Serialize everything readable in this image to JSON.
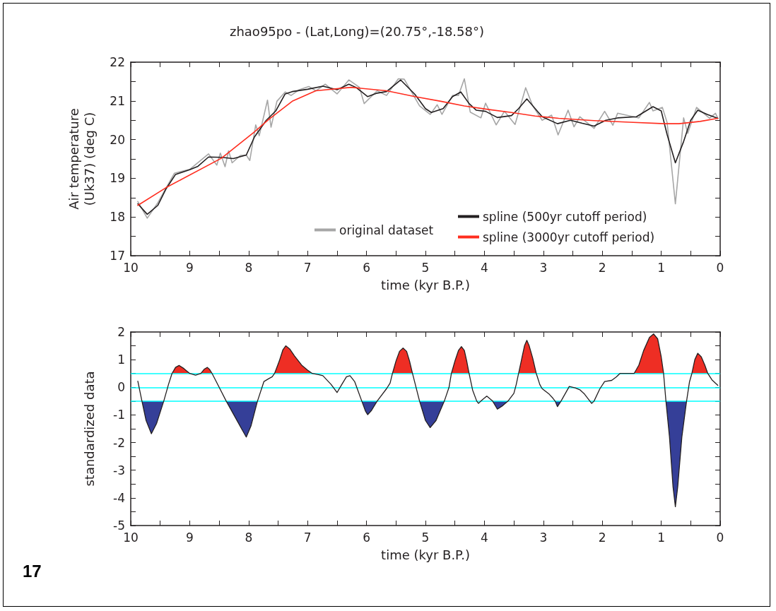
{
  "chart_data": [
    {
      "type": "line",
      "title": "zhao95po - (Lat,Long)=(20.75°,-18.58°)",
      "xlabel": "time (kyr B.P.)",
      "ylabel": "Air temperature\n(Uk37) (deg C)",
      "xlim": [
        10,
        0
      ],
      "ylim": [
        17,
        22
      ],
      "xticks": [
        10,
        {
          "value": 9.5,
          "label": null
        },
        9,
        {
          "value": 8.5,
          "label": null
        },
        8,
        {
          "value": 7.5,
          "label": null
        },
        7,
        {
          "value": 6.5,
          "label": null
        },
        6,
        {
          "value": 5.5,
          "label": null
        },
        5,
        {
          "value": 4.5,
          "label": null
        },
        4,
        {
          "value": 3.5,
          "label": null
        },
        3,
        {
          "value": 2.5,
          "label": null
        },
        2,
        {
          "value": 1.5,
          "label": null
        },
        1,
        {
          "value": 0.5,
          "label": null
        },
        0
      ],
      "yticks": [
        17,
        {
          "value": 17.5,
          "label": null
        },
        18,
        {
          "value": 18.5,
          "label": null
        },
        19,
        {
          "value": 19.5,
          "label": null
        },
        20,
        {
          "value": 20.5,
          "label": null
        },
        21,
        {
          "value": 21.5,
          "label": null
        },
        22
      ],
      "grid": false,
      "legend": "bottom right",
      "marker": "none",
      "line_style": "solid",
      "series": [
        {
          "name": "original dataset",
          "color": "#a6a6a6",
          "x": [
            9.88,
            9.72,
            9.54,
            9.26,
            9.0,
            8.68,
            8.54,
            8.48,
            8.4,
            8.34,
            8.28,
            8.14,
            8.04,
            7.98,
            7.88,
            7.82,
            7.68,
            7.62,
            7.52,
            7.38,
            7.28,
            7.14,
            6.98,
            6.86,
            6.7,
            6.5,
            6.3,
            6.12,
            6.04,
            5.82,
            5.66,
            5.46,
            5.36,
            5.1,
            4.92,
            4.8,
            4.72,
            4.54,
            4.44,
            4.34,
            4.24,
            4.06,
            3.98,
            3.8,
            3.66,
            3.48,
            3.3,
            3.18,
            3.02,
            2.86,
            2.75,
            2.58,
            2.48,
            2.38,
            2.14,
            1.96,
            1.82,
            1.74,
            1.38,
            1.2,
            1.14,
            0.98,
            0.9,
            0.76,
            0.62,
            0.55,
            0.4,
            0.18,
            0.08,
            0.04
          ],
          "values": [
            18.4,
            17.97,
            18.37,
            19.13,
            19.23,
            19.63,
            19.34,
            19.65,
            19.3,
            19.71,
            19.4,
            19.59,
            19.6,
            19.46,
            20.38,
            20.1,
            21.02,
            20.32,
            20.99,
            21.23,
            21.14,
            21.29,
            21.37,
            21.26,
            21.43,
            21.18,
            21.54,
            21.35,
            20.93,
            21.26,
            21.14,
            21.57,
            21.56,
            20.87,
            20.65,
            20.9,
            20.65,
            21.14,
            21.14,
            21.57,
            20.71,
            20.56,
            20.94,
            20.38,
            20.73,
            20.39,
            21.34,
            20.87,
            20.5,
            20.63,
            20.12,
            20.76,
            20.33,
            20.59,
            20.29,
            20.73,
            20.37,
            20.68,
            20.56,
            20.96,
            20.74,
            20.83,
            20.44,
            18.34,
            20.56,
            20.16,
            20.83,
            20.55,
            20.68,
            20.55
          ]
        },
        {
          "name": "spline (500yr cutoff period)",
          "color": "#231f20",
          "x": [
            9.88,
            9.72,
            9.54,
            9.4,
            9.24,
            9.0,
            8.86,
            8.68,
            8.46,
            8.26,
            8.04,
            7.9,
            7.7,
            7.54,
            7.38,
            7.26,
            7.0,
            6.74,
            6.5,
            6.3,
            6.18,
            5.98,
            5.82,
            5.66,
            5.42,
            5.18,
            5.0,
            4.9,
            4.7,
            4.54,
            4.4,
            4.26,
            4.14,
            3.98,
            3.78,
            3.54,
            3.42,
            3.28,
            3.02,
            2.76,
            2.54,
            2.34,
            2.14,
            1.94,
            1.74,
            1.42,
            1.14,
            1.0,
            0.9,
            0.76,
            0.62,
            0.5,
            0.38,
            0.22,
            0.04
          ],
          "values": [
            18.34,
            18.07,
            18.3,
            18.73,
            19.1,
            19.22,
            19.31,
            19.55,
            19.54,
            19.51,
            19.6,
            20.07,
            20.5,
            20.74,
            21.18,
            21.24,
            21.3,
            21.38,
            21.29,
            21.43,
            21.35,
            21.11,
            21.2,
            21.24,
            21.54,
            21.17,
            20.8,
            20.7,
            20.8,
            21.11,
            21.23,
            20.93,
            20.76,
            20.73,
            20.57,
            20.62,
            20.8,
            21.05,
            20.59,
            20.41,
            20.5,
            20.42,
            20.35,
            20.5,
            20.56,
            20.59,
            20.85,
            20.74,
            20.13,
            19.4,
            19.95,
            20.5,
            20.76,
            20.65,
            20.55
          ]
        },
        {
          "name": "spline (3000yr cutoff period)",
          "color": "#ff2d1f",
          "x": [
            9.88,
            9.4,
            8.46,
            7.9,
            7.66,
            7.26,
            6.86,
            6.26,
            5.66,
            5.18,
            4.74,
            4.34,
            3.94,
            3.54,
            3.14,
            2.74,
            2.14,
            1.54,
            0.94,
            0.7,
            0.34,
            0.04
          ],
          "values": [
            18.3,
            18.76,
            19.52,
            20.2,
            20.52,
            20.99,
            21.26,
            21.35,
            21.26,
            21.11,
            20.99,
            20.87,
            20.78,
            20.7,
            20.61,
            20.55,
            20.49,
            20.45,
            20.41,
            20.41,
            20.47,
            20.55
          ]
        }
      ]
    },
    {
      "type": "line",
      "xlabel": "time (kyr B.P.)",
      "ylabel": "standardized data",
      "xlim": [
        10,
        0
      ],
      "ylim": [
        -5,
        2
      ],
      "xticks": [
        10,
        {
          "value": 9.5,
          "label": null
        },
        9,
        {
          "value": 8.5,
          "label": null
        },
        8,
        {
          "value": 7.5,
          "label": null
        },
        7,
        {
          "value": 6.5,
          "label": null
        },
        6,
        {
          "value": 5.5,
          "label": null
        },
        5,
        {
          "value": 4.5,
          "label": null
        },
        4,
        {
          "value": 3.5,
          "label": null
        },
        3,
        {
          "value": 2.5,
          "label": null
        },
        2,
        {
          "value": 1.5,
          "label": null
        },
        1,
        {
          "value": 0.5,
          "label": null
        },
        0
      ],
      "yticks": [
        -5,
        {
          "value": -4.5,
          "label": null
        },
        -4,
        {
          "value": -3.5,
          "label": null
        },
        -3,
        {
          "value": -2.5,
          "label": null
        },
        -2,
        {
          "value": -1.5,
          "label": null
        },
        -1,
        {
          "value": -0.5,
          "label": null
        },
        0,
        {
          "value": 0.5,
          "label": null
        },
        1,
        {
          "value": 1.5,
          "label": null
        },
        2
      ],
      "grid": false,
      "marker": "none",
      "line_style": "solid",
      "annotations": [
        "17"
      ],
      "ref_lines": [
        {
          "axis": "y",
          "value": 0.5,
          "color": "#00ffff"
        },
        {
          "axis": "y",
          "value": 0,
          "color": "#00ffff"
        },
        {
          "axis": "y",
          "value": -0.5,
          "color": "#00ffff"
        }
      ],
      "series": [
        {
          "type": "area",
          "color": "#ee2e24",
          "x": [
            9.3,
            9.24,
            9.18,
            9.1,
            9.0,
            8.81,
            8.75,
            8.7,
            8.66,
            8.62,
            7.56,
            7.48,
            7.42,
            7.37,
            7.3,
            7.22,
            7.1,
            7.0,
            6.92,
            5.56,
            5.5,
            5.44,
            5.38,
            5.32,
            5.27,
            5.22,
            4.56,
            4.5,
            4.44,
            4.39,
            4.34,
            4.3,
            4.26,
            3.42,
            3.36,
            3.32,
            3.28,
            3.24,
            3.18,
            3.12,
            1.46,
            1.38,
            1.3,
            1.2,
            1.13,
            1.06,
            1.0,
            0.96,
            0.48,
            0.43,
            0.38,
            0.32,
            0.26,
            0.21
          ],
          "values": [
            0.5,
            0.72,
            0.79,
            0.68,
            0.5,
            0.5,
            0.66,
            0.72,
            0.64,
            0.5,
            0.5,
            0.95,
            1.35,
            1.5,
            1.38,
            1.13,
            0.8,
            0.62,
            0.5,
            0.5,
            0.95,
            1.3,
            1.42,
            1.3,
            0.95,
            0.5,
            0.5,
            0.95,
            1.33,
            1.47,
            1.33,
            0.95,
            0.5,
            0.5,
            1.1,
            1.5,
            1.7,
            1.5,
            1.05,
            0.5,
            0.5,
            0.8,
            1.32,
            1.8,
            1.93,
            1.75,
            1.1,
            0.5,
            0.5,
            1.0,
            1.23,
            1.1,
            0.8,
            0.5
          ]
        },
        {
          "type": "area",
          "color": "#353f98",
          "x": [
            9.81,
            9.74,
            9.65,
            9.56,
            9.44,
            8.38,
            8.25,
            8.12,
            8.04,
            7.96,
            7.85,
            6.08,
            6.02,
            5.98,
            5.92,
            5.82,
            5.1,
            5.0,
            4.92,
            4.82,
            4.68,
            3.86,
            3.78,
            3.7,
            3.6,
            2.8,
            2.76,
            2.7,
            0.92,
            0.86,
            0.8,
            0.76,
            0.72,
            0.65,
            0.57
          ],
          "values": [
            -0.5,
            -1.2,
            -1.68,
            -1.3,
            -0.5,
            -0.5,
            -1.0,
            -1.5,
            -1.8,
            -1.4,
            -0.5,
            -0.5,
            -0.85,
            -0.99,
            -0.85,
            -0.5,
            -0.5,
            -1.2,
            -1.46,
            -1.2,
            -0.5,
            -0.5,
            -0.79,
            -0.68,
            -0.5,
            -0.5,
            -0.7,
            -0.5,
            -0.5,
            -1.8,
            -3.6,
            -4.32,
            -3.6,
            -1.8,
            -0.5
          ]
        },
        {
          "type": "line",
          "color": "#231f20",
          "x": [
            9.88,
            9.81,
            9.74,
            9.65,
            9.56,
            9.44,
            9.36,
            9.3,
            9.24,
            9.18,
            9.1,
            9.0,
            8.9,
            8.81,
            8.75,
            8.7,
            8.66,
            8.62,
            8.5,
            8.38,
            8.25,
            8.12,
            8.04,
            7.96,
            7.85,
            7.74,
            7.66,
            7.6,
            7.56,
            7.48,
            7.42,
            7.37,
            7.3,
            7.22,
            7.1,
            7.0,
            6.92,
            6.8,
            6.74,
            6.6,
            6.5,
            6.42,
            6.34,
            6.28,
            6.2,
            6.08,
            6.02,
            5.98,
            5.92,
            5.82,
            5.66,
            5.6,
            5.56,
            5.5,
            5.44,
            5.38,
            5.32,
            5.27,
            5.22,
            5.1,
            5.0,
            4.92,
            4.82,
            4.68,
            4.6,
            4.56,
            4.5,
            4.44,
            4.39,
            4.34,
            4.3,
            4.26,
            4.2,
            4.13,
            4.1,
            4.06,
            3.96,
            3.86,
            3.78,
            3.7,
            3.6,
            3.5,
            3.46,
            3.42,
            3.36,
            3.32,
            3.28,
            3.24,
            3.18,
            3.12,
            3.06,
            3.02,
            2.9,
            2.84,
            2.8,
            2.76,
            2.7,
            2.56,
            2.46,
            2.38,
            2.3,
            2.21,
            2.18,
            2.14,
            2.04,
            1.96,
            1.84,
            1.76,
            1.7,
            1.6,
            1.46,
            1.38,
            1.3,
            1.2,
            1.13,
            1.06,
            1.0,
            0.96,
            0.92,
            0.86,
            0.8,
            0.76,
            0.72,
            0.65,
            0.57,
            0.52,
            0.48,
            0.43,
            0.38,
            0.32,
            0.26,
            0.21,
            0.14,
            0.04
          ],
          "values": [
            0.22,
            -0.5,
            -1.2,
            -1.68,
            -1.3,
            -0.5,
            0.1,
            0.5,
            0.72,
            0.79,
            0.68,
            0.5,
            0.44,
            0.5,
            0.66,
            0.72,
            0.64,
            0.5,
            0.0,
            -0.5,
            -1.0,
            -1.5,
            -1.8,
            -1.4,
            -0.5,
            0.21,
            0.31,
            0.38,
            0.5,
            0.95,
            1.35,
            1.5,
            1.38,
            1.13,
            0.8,
            0.62,
            0.5,
            0.45,
            0.42,
            0.1,
            -0.19,
            0.1,
            0.38,
            0.42,
            0.2,
            -0.5,
            -0.85,
            -0.99,
            -0.85,
            -0.5,
            -0.05,
            0.15,
            0.5,
            0.95,
            1.3,
            1.42,
            1.3,
            0.95,
            0.5,
            -0.5,
            -1.2,
            -1.46,
            -1.2,
            -0.5,
            0.0,
            0.5,
            0.95,
            1.33,
            1.47,
            1.33,
            0.95,
            0.5,
            -0.1,
            -0.5,
            -0.58,
            -0.5,
            -0.32,
            -0.5,
            -0.79,
            -0.68,
            -0.5,
            -0.22,
            0.1,
            0.5,
            1.1,
            1.5,
            1.7,
            1.5,
            1.05,
            0.5,
            0.1,
            -0.05,
            -0.25,
            -0.39,
            -0.5,
            -0.7,
            -0.5,
            0.03,
            -0.02,
            -0.09,
            -0.25,
            -0.5,
            -0.58,
            -0.5,
            -0.05,
            0.21,
            0.25,
            0.38,
            0.5,
            0.5,
            0.5,
            0.8,
            1.32,
            1.8,
            1.93,
            1.75,
            1.1,
            0.5,
            -0.5,
            -1.8,
            -3.6,
            -4.32,
            -3.6,
            -1.8,
            -0.5,
            0.2,
            0.5,
            1.0,
            1.23,
            1.1,
            0.8,
            0.5,
            0.27,
            0.07
          ]
        }
      ]
    }
  ]
}
